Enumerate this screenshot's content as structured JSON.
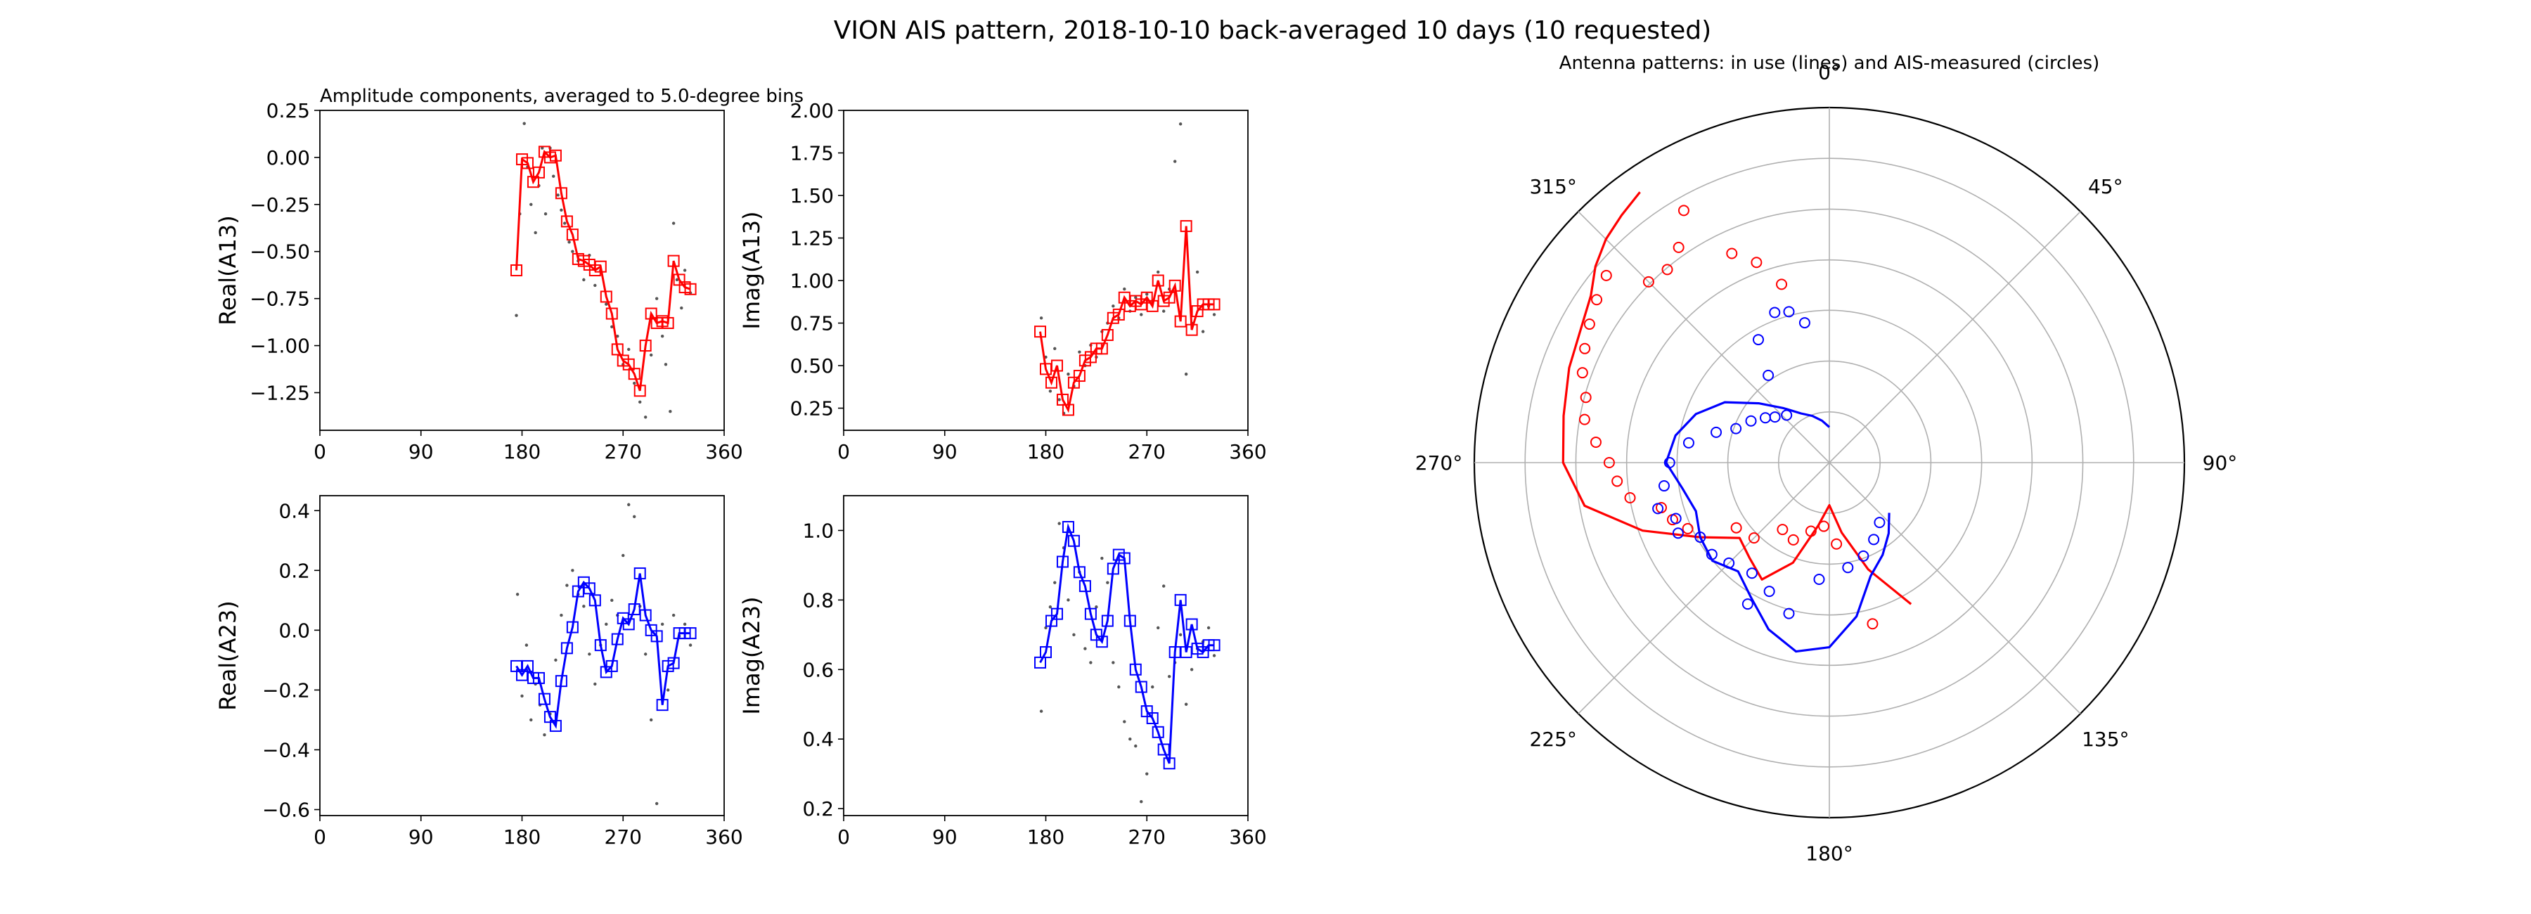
{
  "figure": {
    "suptitle": "VION AIS pattern, 2018-10-10 back-averaged 10 days (10 requested)"
  },
  "chart_data": [
    {
      "id": "real_a13",
      "type": "line",
      "title": "Amplitude components, averaged to 5.0-degree bins",
      "xlabel": "",
      "ylabel": "Real(A13)",
      "xlim": [
        0,
        360
      ],
      "ylim": [
        -1.45,
        0.25
      ],
      "xticks": [
        0,
        90,
        180,
        270,
        360
      ],
      "yticks": [
        0.25,
        0.0,
        -0.25,
        -0.5,
        -0.75,
        -1.0,
        -1.25
      ],
      "ytick_labels": [
        "0.25",
        "0.00",
        "−0.25",
        "−0.50",
        "−0.75",
        "−1.00",
        "−1.25"
      ],
      "color": "#ff0000",
      "x": [
        175,
        180,
        185,
        190,
        195,
        200,
        205,
        210,
        215,
        220,
        225,
        230,
        235,
        240,
        245,
        250,
        255,
        260,
        265,
        270,
        275,
        280,
        285,
        290,
        295,
        300,
        305,
        310,
        315,
        320,
        325,
        330
      ],
      "y": [
        -0.6,
        -0.01,
        -0.03,
        -0.13,
        -0.08,
        0.03,
        0.0,
        0.01,
        -0.19,
        -0.34,
        -0.41,
        -0.54,
        -0.55,
        -0.57,
        -0.6,
        -0.58,
        -0.74,
        -0.83,
        -1.02,
        -1.08,
        -1.1,
        -1.15,
        -1.24,
        -1.0,
        -0.83,
        -0.88,
        -0.87,
        -0.88,
        -0.55,
        -0.65,
        -0.69,
        -0.7
      ],
      "scatter_x": [
        175,
        178,
        182,
        185,
        188,
        192,
        195,
        198,
        201,
        205,
        208,
        212,
        215,
        218,
        222,
        225,
        230,
        235,
        240,
        245,
        250,
        255,
        260,
        265,
        270,
        275,
        280,
        285,
        290,
        295,
        300,
        305,
        308,
        312,
        315,
        318,
        322,
        325,
        330
      ],
      "scatter_y": [
        -0.84,
        -0.3,
        0.18,
        -0.05,
        -0.25,
        -0.4,
        -0.15,
        0.05,
        -0.3,
        0.05,
        -0.1,
        -0.2,
        -0.28,
        -0.35,
        -0.45,
        -0.5,
        -0.55,
        -0.65,
        -0.52,
        -0.68,
        -0.6,
        -0.78,
        -0.9,
        -0.95,
        -1.1,
        -1.02,
        -1.2,
        -1.3,
        -1.38,
        -1.05,
        -0.75,
        -0.95,
        -1.1,
        -1.35,
        -0.35,
        -0.65,
        -0.8,
        -0.6,
        -0.72
      ]
    },
    {
      "id": "imag_a13",
      "type": "line",
      "title": "",
      "xlabel": "",
      "ylabel": "Imag(A13)",
      "xlim": [
        0,
        360
      ],
      "ylim": [
        0.12,
        2.0
      ],
      "xticks": [
        0,
        90,
        180,
        270,
        360
      ],
      "yticks": [
        2.0,
        1.75,
        1.5,
        1.25,
        1.0,
        0.75,
        0.5,
        0.25
      ],
      "ytick_labels": [
        "2.00",
        "1.75",
        "1.50",
        "1.25",
        "1.00",
        "0.75",
        "0.50",
        "0.25"
      ],
      "color": "#ff0000",
      "x": [
        175,
        180,
        185,
        190,
        195,
        200,
        205,
        210,
        215,
        220,
        225,
        230,
        235,
        240,
        245,
        250,
        255,
        260,
        265,
        270,
        275,
        280,
        285,
        290,
        295,
        300,
        305,
        310,
        315,
        320,
        325,
        330
      ],
      "y": [
        0.7,
        0.48,
        0.4,
        0.5,
        0.3,
        0.24,
        0.4,
        0.44,
        0.53,
        0.55,
        0.6,
        0.6,
        0.68,
        0.78,
        0.8,
        0.9,
        0.85,
        0.88,
        0.86,
        0.9,
        0.85,
        1.0,
        0.88,
        0.9,
        0.97,
        0.76,
        1.32,
        0.71,
        0.82,
        0.86,
        0.86,
        0.86
      ],
      "scatter_x": [
        176,
        180,
        184,
        188,
        192,
        196,
        200,
        205,
        210,
        215,
        220,
        225,
        230,
        235,
        240,
        245,
        250,
        255,
        260,
        265,
        270,
        275,
        280,
        285,
        290,
        295,
        300,
        305,
        310,
        315,
        320,
        325,
        330
      ],
      "scatter_y": [
        0.78,
        0.55,
        0.35,
        0.6,
        0.3,
        0.22,
        0.45,
        0.38,
        0.58,
        0.5,
        0.62,
        0.55,
        0.7,
        0.75,
        0.85,
        0.78,
        0.95,
        0.82,
        0.9,
        0.8,
        0.92,
        0.88,
        1.05,
        0.82,
        0.95,
        1.7,
        1.92,
        0.45,
        0.75,
        1.05,
        0.7,
        0.85,
        0.8
      ]
    },
    {
      "id": "real_a23",
      "type": "line",
      "title": "",
      "xlabel": "",
      "ylabel": "Real(A23)",
      "xlim": [
        0,
        360
      ],
      "ylim": [
        -0.62,
        0.45
      ],
      "xticks": [
        0,
        90,
        180,
        270,
        360
      ],
      "yticks": [
        0.4,
        0.2,
        0.0,
        -0.2,
        -0.4,
        -0.6
      ],
      "ytick_labels": [
        "0.4",
        "0.2",
        "0.0",
        "−0.2",
        "−0.4",
        "−0.6"
      ],
      "color": "#0000ff",
      "x": [
        175,
        180,
        185,
        190,
        195,
        200,
        205,
        210,
        215,
        220,
        225,
        230,
        235,
        240,
        245,
        250,
        255,
        260,
        265,
        270,
        275,
        280,
        285,
        290,
        295,
        300,
        305,
        310,
        315,
        320,
        325,
        330
      ],
      "y": [
        -0.12,
        -0.15,
        -0.12,
        -0.16,
        -0.16,
        -0.23,
        -0.29,
        -0.32,
        -0.17,
        -0.06,
        0.01,
        0.13,
        0.16,
        0.14,
        0.1,
        -0.05,
        -0.14,
        -0.12,
        -0.03,
        0.04,
        0.02,
        0.07,
        0.19,
        0.05,
        0.0,
        -0.02,
        -0.25,
        -0.12,
        -0.11,
        -0.01,
        -0.01,
        -0.01
      ],
      "scatter_x": [
        176,
        180,
        184,
        188,
        192,
        196,
        200,
        205,
        210,
        215,
        220,
        225,
        230,
        235,
        240,
        245,
        250,
        255,
        260,
        265,
        270,
        275,
        280,
        285,
        290,
        295,
        300,
        305,
        310,
        315,
        320,
        325,
        330
      ],
      "scatter_y": [
        0.12,
        -0.22,
        -0.05,
        -0.3,
        -0.18,
        -0.25,
        -0.35,
        -0.28,
        -0.1,
        0.05,
        0.15,
        0.2,
        0.12,
        0.08,
        -0.08,
        -0.18,
        -0.05,
        0.02,
        0.1,
        0.05,
        0.25,
        0.42,
        0.38,
        0.08,
        -0.08,
        -0.3,
        -0.58,
        0.02,
        -0.2,
        0.05,
        -0.02,
        0.02,
        -0.05
      ]
    },
    {
      "id": "imag_a23",
      "type": "line",
      "title": "",
      "xlabel": "",
      "ylabel": "Imag(A23)",
      "xlim": [
        0,
        360
      ],
      "ylim": [
        0.18,
        1.1
      ],
      "xticks": [
        0,
        90,
        180,
        270,
        360
      ],
      "yticks": [
        1.0,
        0.8,
        0.6,
        0.4,
        0.2
      ],
      "ytick_labels": [
        "1.0",
        "0.8",
        "0.6",
        "0.4",
        "0.2"
      ],
      "color": "#0000ff",
      "x": [
        175,
        180,
        185,
        190,
        195,
        200,
        205,
        210,
        215,
        220,
        225,
        230,
        235,
        240,
        245,
        250,
        255,
        260,
        265,
        270,
        275,
        280,
        285,
        290,
        295,
        300,
        305,
        310,
        315,
        320,
        325,
        330
      ],
      "y": [
        0.62,
        0.65,
        0.74,
        0.76,
        0.91,
        1.01,
        0.97,
        0.88,
        0.84,
        0.76,
        0.7,
        0.68,
        0.74,
        0.89,
        0.93,
        0.92,
        0.74,
        0.6,
        0.55,
        0.48,
        0.46,
        0.42,
        0.37,
        0.33,
        0.65,
        0.8,
        0.65,
        0.73,
        0.66,
        0.65,
        0.67,
        0.67
      ],
      "scatter_x": [
        176,
        180,
        184,
        188,
        192,
        196,
        200,
        205,
        210,
        215,
        220,
        225,
        230,
        235,
        240,
        245,
        250,
        255,
        260,
        265,
        270,
        275,
        280,
        285,
        290,
        295,
        300,
        305,
        310,
        315,
        320,
        325,
        330
      ],
      "scatter_y": [
        0.48,
        0.72,
        0.78,
        0.85,
        1.02,
        0.95,
        0.8,
        0.7,
        0.88,
        0.66,
        0.62,
        0.78,
        0.92,
        0.85,
        0.62,
        0.55,
        0.45,
        0.4,
        0.38,
        0.22,
        0.3,
        0.55,
        0.72,
        0.84,
        0.58,
        0.62,
        0.7,
        0.5,
        0.6,
        0.66,
        0.68,
        0.72,
        0.64
      ]
    },
    {
      "id": "polar",
      "type": "polar",
      "title": "Antenna patterns: in use (lines) and AIS-measured (circles)",
      "theta_direction": "clockwise",
      "theta_zero": "top",
      "rmax": 1.0,
      "rings": [
        0.143,
        0.286,
        0.429,
        0.571,
        0.714,
        0.857,
        1.0
      ],
      "theta_labels": [
        "0°",
        "45°",
        "90°",
        "135°",
        "180°",
        "225°",
        "270°",
        "315°"
      ],
      "series": [
        {
          "color": "#ff0000",
          "line_theta": [
            150,
            160,
            170,
            180,
            190,
            200,
            210,
            220,
            230,
            240,
            250,
            260,
            270,
            280,
            290,
            300,
            305,
            310,
            315,
            320,
            325
          ],
          "line_r": [
            0.46,
            0.32,
            0.2,
            0.12,
            0.18,
            0.3,
            0.38,
            0.35,
            0.33,
            0.42,
            0.56,
            0.7,
            0.75,
            0.76,
            0.78,
            0.8,
            0.82,
            0.86,
            0.89,
            0.91,
            0.93
          ],
          "circle_theta": [
            165,
            175,
            185,
            195,
            205,
            215,
            225,
            235,
            245,
            250,
            255,
            260,
            265,
            270,
            275,
            280,
            285,
            290,
            295,
            300,
            305,
            310,
            315,
            320,
            325,
            330,
            335,
            340,
            345
          ],
          "circle_r": [
            0.47,
            0.23,
            0.18,
            0.2,
            0.24,
            0.23,
            0.3,
            0.32,
            0.44,
            0.47,
            0.49,
            0.57,
            0.6,
            0.62,
            0.66,
            0.7,
            0.71,
            0.74,
            0.76,
            0.78,
            0.8,
            0.82,
            0.72,
            0.71,
            0.74,
            0.82,
            0.65,
            0.6,
            0.52
          ]
        },
        {
          "color": "#0000ff",
          "line_theta": [
            130,
            140,
            150,
            160,
            170,
            180,
            190,
            200,
            210,
            220,
            230,
            240,
            250,
            260,
            270,
            280,
            290,
            300,
            310,
            320,
            330,
            340,
            350,
            0
          ],
          "line_r": [
            0.22,
            0.26,
            0.3,
            0.34,
            0.44,
            0.52,
            0.54,
            0.5,
            0.44,
            0.4,
            0.43,
            0.42,
            0.4,
            0.42,
            0.46,
            0.44,
            0.4,
            0.34,
            0.26,
            0.2,
            0.16,
            0.14,
            0.12,
            0.1
          ],
          "circle_theta": [
            140,
            150,
            160,
            170,
            185,
            195,
            205,
            210,
            215,
            225,
            232,
            240,
            245,
            250,
            255,
            262,
            270,
            278,
            285,
            290,
            298,
            305,
            310,
            318,
            325,
            330,
            340,
            345,
            350
          ],
          "circle_r": [
            0.22,
            0.25,
            0.28,
            0.3,
            0.33,
            0.44,
            0.4,
            0.46,
            0.38,
            0.4,
            0.42,
            0.42,
            0.47,
            0.46,
            0.5,
            0.47,
            0.45,
            0.4,
            0.33,
            0.28,
            0.25,
            0.22,
            0.2,
            0.18,
            0.3,
            0.4,
            0.45,
            0.44,
            0.4
          ]
        }
      ]
    }
  ]
}
